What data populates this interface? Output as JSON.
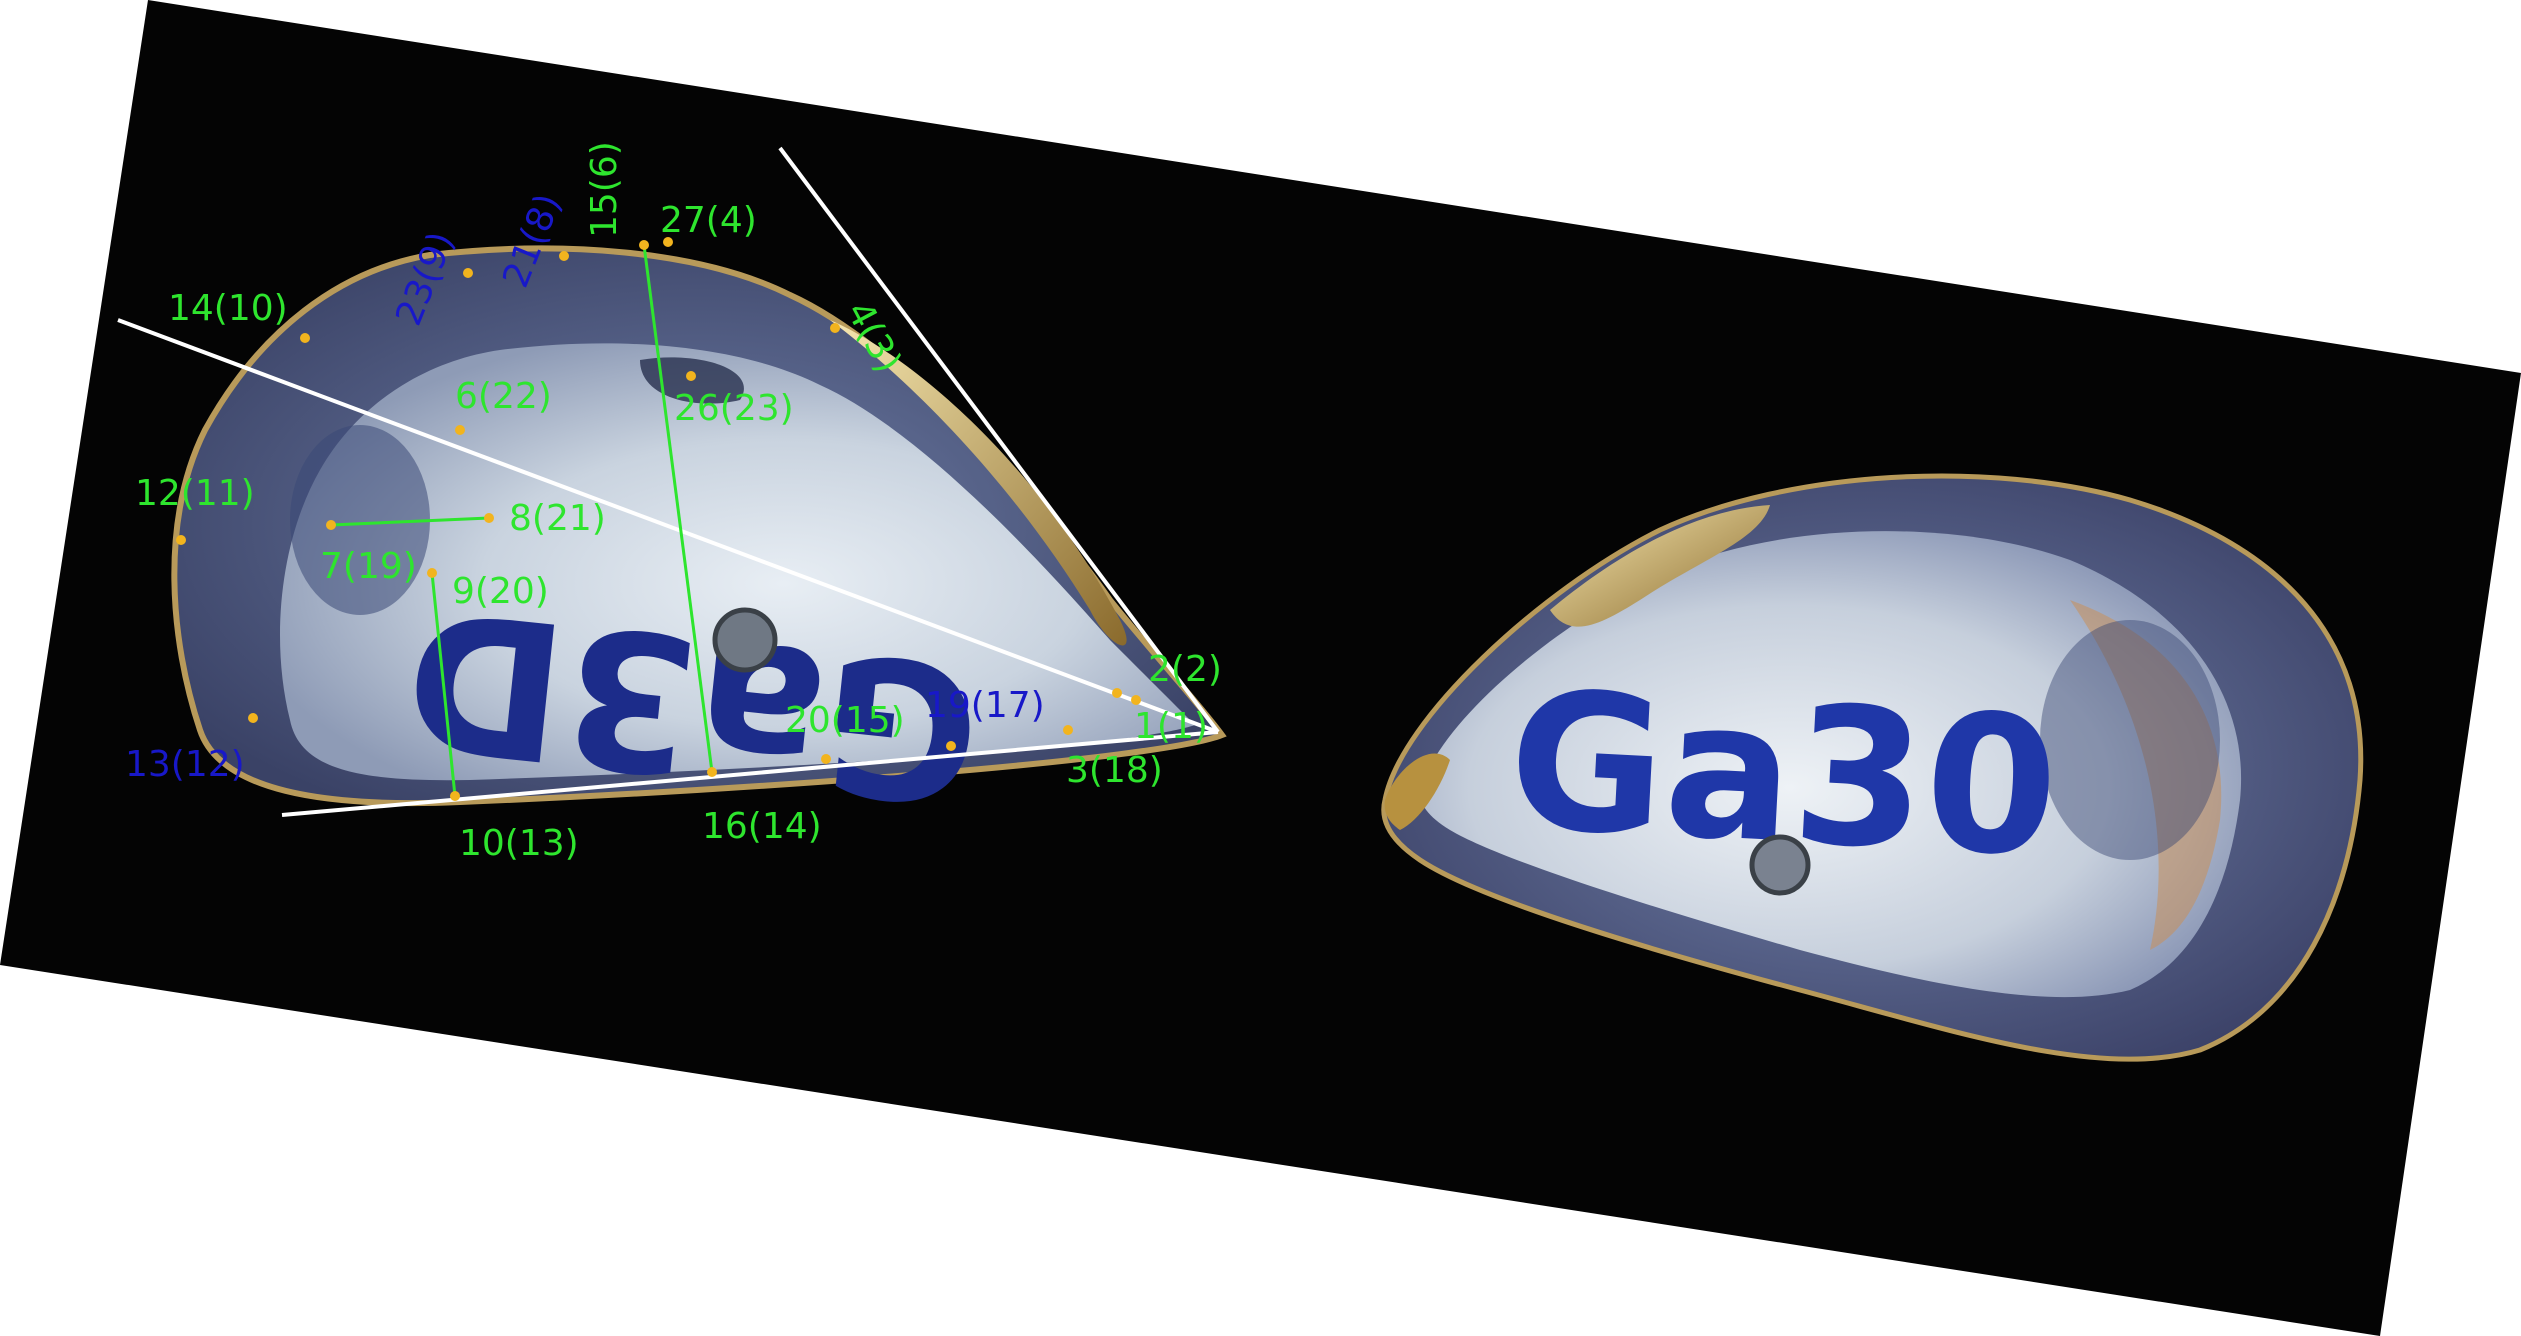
{
  "scene": {
    "shell_left_marking": "Ga3D",
    "shell_right_marking": "Ga30",
    "label_colors": {
      "green": "#2ee52e",
      "blue": "#1818c8"
    },
    "landmark_color": "#f2b41e",
    "background_color": "#040404",
    "page_color": "#ffffff"
  },
  "landmarks": [
    {
      "id": "1(1)",
      "color": "green"
    },
    {
      "id": "2(2)",
      "color": "green"
    },
    {
      "id": "3(18)",
      "color": "green"
    },
    {
      "id": "4(3)",
      "color": "green"
    },
    {
      "id": "27(4)",
      "color": "green"
    },
    {
      "id": "15(6)",
      "color": "green"
    },
    {
      "id": "21(8)",
      "color": "blue"
    },
    {
      "id": "23(9)",
      "color": "blue"
    },
    {
      "id": "14(10)",
      "color": "green"
    },
    {
      "id": "12(11)",
      "color": "green"
    },
    {
      "id": "13(12)",
      "color": "blue"
    },
    {
      "id": "10(13)",
      "color": "green"
    },
    {
      "id": "16(14)",
      "color": "green"
    },
    {
      "id": "20(15)",
      "color": "green"
    },
    {
      "id": "19(17)",
      "color": "blue"
    },
    {
      "id": "7(19)",
      "color": "green"
    },
    {
      "id": "9(20)",
      "color": "green"
    },
    {
      "id": "8(21)",
      "color": "green"
    },
    {
      "id": "6(22)",
      "color": "green"
    },
    {
      "id": "26(23)",
      "color": "green"
    }
  ]
}
